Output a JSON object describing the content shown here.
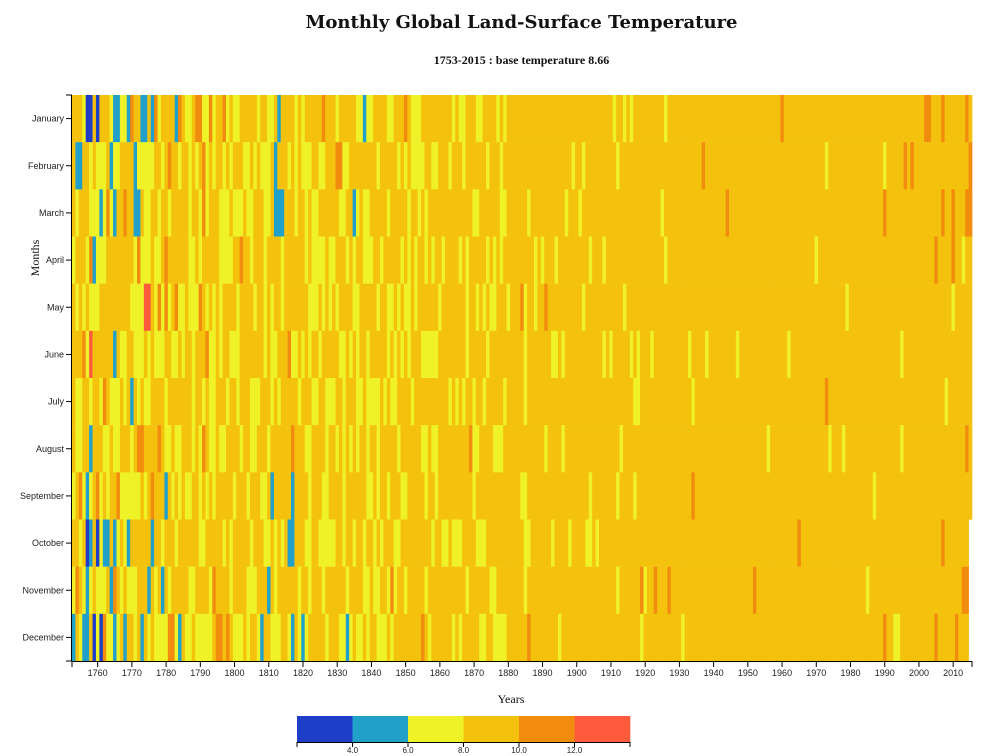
{
  "chart_data": {
    "type": "heatmap",
    "title": "Monthly Global Land-Surface Temperature",
    "subtitle": "1753-2015 : base temperature 8.66",
    "xlabel": "Years",
    "ylabel": "Months",
    "base_temperature": 8.66,
    "x_range": [
      1753,
      2015
    ],
    "x_ticks": [
      1760,
      1770,
      1780,
      1790,
      1800,
      1810,
      1820,
      1830,
      1840,
      1850,
      1860,
      1870,
      1880,
      1890,
      1900,
      1910,
      1920,
      1930,
      1940,
      1950,
      1960,
      1970,
      1980,
      1990,
      2000,
      2010
    ],
    "months": [
      "January",
      "February",
      "March",
      "April",
      "May",
      "June",
      "July",
      "August",
      "September",
      "October",
      "November",
      "December"
    ],
    "last_month_2015": 9,
    "legend": {
      "thresholds": [
        4.0,
        6.0,
        8.0,
        10.0,
        12.0
      ],
      "tick_labels": [
        "4.0",
        "6.0",
        "8.0",
        "10.0",
        "12.0"
      ],
      "colors": [
        "#1f3ec8",
        "#21a0c9",
        "#eff227",
        "#f4c20d",
        "#f28c0e",
        "#fd5b3c"
      ]
    },
    "special_cells": [
      {
        "year": 1757,
        "month": 1,
        "temp": 3.4
      },
      {
        "year": 1758,
        "month": 1,
        "temp": 3.6
      },
      {
        "year": 1760,
        "month": 1,
        "temp": 3.5
      },
      {
        "year": 1765,
        "month": 1,
        "temp": 5.0
      },
      {
        "year": 1766,
        "month": 1,
        "temp": 4.8
      },
      {
        "year": 1769,
        "month": 1,
        "temp": 5.2
      },
      {
        "year": 1773,
        "month": 1,
        "temp": 4.9
      },
      {
        "year": 1774,
        "month": 1,
        "temp": 5.1
      },
      {
        "year": 1776,
        "month": 1,
        "temp": 5.3
      },
      {
        "year": 1783,
        "month": 1,
        "temp": 5.4
      },
      {
        "year": 1813,
        "month": 1,
        "temp": 5.5
      },
      {
        "year": 1838,
        "month": 1,
        "temp": 5.4
      },
      {
        "year": 1754,
        "month": 2,
        "temp": 5.2
      },
      {
        "year": 1755,
        "month": 2,
        "temp": 5.4
      },
      {
        "year": 1764,
        "month": 2,
        "temp": 5.6
      },
      {
        "year": 1771,
        "month": 2,
        "temp": 5.3
      },
      {
        "year": 1812,
        "month": 2,
        "temp": 5.5
      },
      {
        "year": 1761,
        "month": 3,
        "temp": 5.1
      },
      {
        "year": 1765,
        "month": 3,
        "temp": 5.3
      },
      {
        "year": 1771,
        "month": 3,
        "temp": 5.0
      },
      {
        "year": 1772,
        "month": 3,
        "temp": 5.2
      },
      {
        "year": 1812,
        "month": 3,
        "temp": 5.1
      },
      {
        "year": 1813,
        "month": 3,
        "temp": 5.0
      },
      {
        "year": 1814,
        "month": 3,
        "temp": 5.2
      },
      {
        "year": 1835,
        "month": 3,
        "temp": 5.4
      },
      {
        "year": 1759,
        "month": 4,
        "temp": 5.5
      },
      {
        "year": 1765,
        "month": 6,
        "temp": 5.6
      },
      {
        "year": 1770,
        "month": 7,
        "temp": 5.7
      },
      {
        "year": 1758,
        "month": 8,
        "temp": 5.6
      },
      {
        "year": 1757,
        "month": 9,
        "temp": 5.5
      },
      {
        "year": 1780,
        "month": 9,
        "temp": 5.4
      },
      {
        "year": 1811,
        "month": 9,
        "temp": 5.3
      },
      {
        "year": 1817,
        "month": 9,
        "temp": 5.5
      },
      {
        "year": 1757,
        "month": 10,
        "temp": 3.8
      },
      {
        "year": 1758,
        "month": 10,
        "temp": 5.0
      },
      {
        "year": 1760,
        "month": 10,
        "temp": 3.7
      },
      {
        "year": 1762,
        "month": 10,
        "temp": 5.2
      },
      {
        "year": 1763,
        "month": 10,
        "temp": 5.1
      },
      {
        "year": 1765,
        "month": 10,
        "temp": 5.4
      },
      {
        "year": 1769,
        "month": 10,
        "temp": 5.3
      },
      {
        "year": 1776,
        "month": 10,
        "temp": 5.5
      },
      {
        "year": 1816,
        "month": 10,
        "temp": 5.0
      },
      {
        "year": 1817,
        "month": 10,
        "temp": 5.2
      },
      {
        "year": 1757,
        "month": 11,
        "temp": 5.4
      },
      {
        "year": 1764,
        "month": 11,
        "temp": 5.6
      },
      {
        "year": 1775,
        "month": 11,
        "temp": 5.5
      },
      {
        "year": 1779,
        "month": 11,
        "temp": 5.3
      },
      {
        "year": 1810,
        "month": 11,
        "temp": 5.4
      },
      {
        "year": 1753,
        "month": 12,
        "temp": 5.5
      },
      {
        "year": 1756,
        "month": 12,
        "temp": 5.2
      },
      {
        "year": 1757,
        "month": 12,
        "temp": 5.0
      },
      {
        "year": 1759,
        "month": 12,
        "temp": 3.6
      },
      {
        "year": 1761,
        "month": 12,
        "temp": 3.5
      },
      {
        "year": 1765,
        "month": 12,
        "temp": 5.4
      },
      {
        "year": 1768,
        "month": 12,
        "temp": 5.3
      },
      {
        "year": 1773,
        "month": 12,
        "temp": 5.5
      },
      {
        "year": 1784,
        "month": 12,
        "temp": 5.6
      },
      {
        "year": 1808,
        "month": 12,
        "temp": 5.4
      },
      {
        "year": 1817,
        "month": 12,
        "temp": 5.5
      },
      {
        "year": 1820,
        "month": 12,
        "temp": 5.6
      },
      {
        "year": 1833,
        "month": 12,
        "temp": 5.5
      },
      {
        "year": 1774,
        "month": 5,
        "temp": 12.3
      },
      {
        "year": 1775,
        "month": 5,
        "temp": 12.1
      },
      {
        "year": 1780,
        "month": 5,
        "temp": 11.2
      },
      {
        "year": 1758,
        "month": 6,
        "temp": 12.1
      },
      {
        "year": 1762,
        "month": 7,
        "temp": 11.5
      },
      {
        "year": 1772,
        "month": 4,
        "temp": 11.3
      },
      {
        "year": 1780,
        "month": 4,
        "temp": 11.4
      },
      {
        "year": 1778,
        "month": 8,
        "temp": 11.2
      },
      {
        "year": 1765,
        "month": 11,
        "temp": 10.8
      },
      {
        "year": 1797,
        "month": 1,
        "temp": 10.6
      },
      {
        "year": 1944,
        "month": 3,
        "temp": 10.4
      },
      {
        "year": 1990,
        "month": 3,
        "temp": 10.5
      },
      {
        "year": 1996,
        "month": 2,
        "temp": 10.6
      },
      {
        "year": 1998,
        "month": 2,
        "temp": 10.8
      },
      {
        "year": 2002,
        "month": 1,
        "temp": 10.7
      },
      {
        "year": 2003,
        "month": 1,
        "temp": 10.6
      },
      {
        "year": 2007,
        "month": 1,
        "temp": 10.9
      },
      {
        "year": 2007,
        "month": 3,
        "temp": 10.7
      },
      {
        "year": 2010,
        "month": 3,
        "temp": 10.6
      },
      {
        "year": 2014,
        "month": 3,
        "temp": 10.8
      },
      {
        "year": 2015,
        "month": 3,
        "temp": 10.5
      },
      {
        "year": 2015,
        "month": 2,
        "temp": 10.4
      },
      {
        "year": 2014,
        "month": 1,
        "temp": 10.5
      },
      {
        "year": 2005,
        "month": 4,
        "temp": 10.4
      },
      {
        "year": 2007,
        "month": 10,
        "temp": 10.2
      },
      {
        "year": 2011,
        "month": 12,
        "temp": 10.3
      },
      {
        "year": 2013,
        "month": 11,
        "temp": 10.4
      },
      {
        "year": 2014,
        "month": 11,
        "temp": 10.3
      }
    ]
  }
}
